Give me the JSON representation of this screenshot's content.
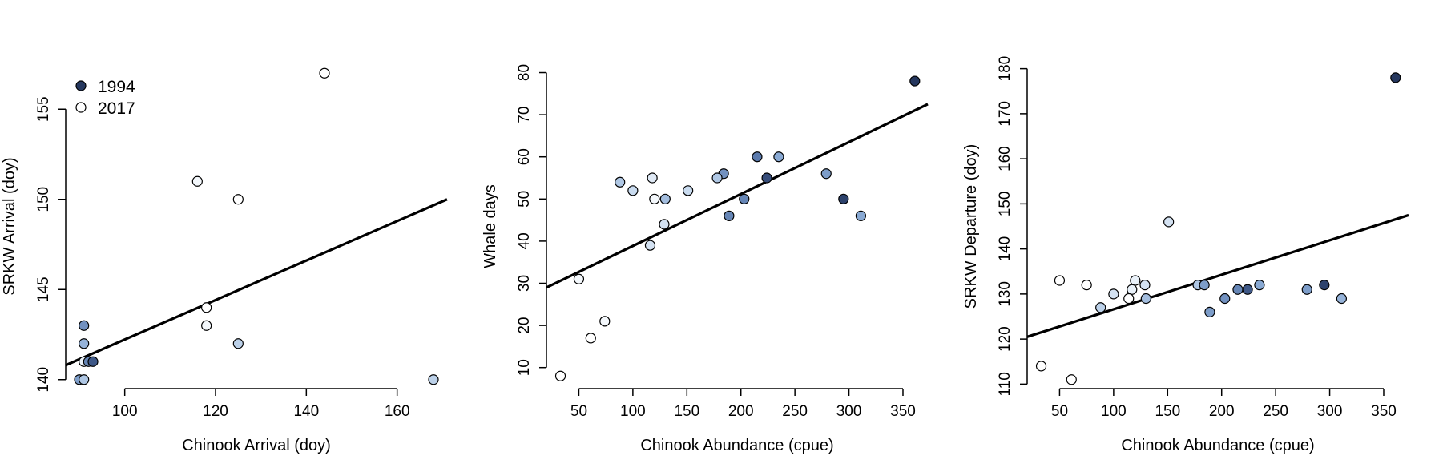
{
  "colors": {
    "year_1994": "#25375e",
    "year_2017": "#ffffff",
    "gradient_stops": [
      "#25375e",
      "#4f6ea3",
      "#89a9d3",
      "#c9dbef",
      "#ffffff"
    ]
  },
  "legend": {
    "position": "top-left",
    "entries": [
      "1994",
      "2017"
    ]
  },
  "chart_data": [
    {
      "type": "scatter",
      "xlabel": "Chinook Arrival (doy)",
      "ylabel": "SRKW Arrival (doy)",
      "xlim": [
        87,
        171
      ],
      "ylim": [
        139.5,
        157.5
      ],
      "xticks": [
        "100",
        "120",
        "140",
        "160"
      ],
      "yticks": [
        "140",
        "145",
        "150",
        "155"
      ],
      "xtick_values": [
        100,
        120,
        140,
        160
      ],
      "ytick_values": [
        140,
        145,
        150,
        155
      ],
      "points": [
        {
          "x": 144,
          "y": 157,
          "t": 1.0
        },
        {
          "x": 116,
          "y": 151,
          "t": 0.95
        },
        {
          "x": 125,
          "y": 150,
          "t": 1.0
        },
        {
          "x": 118,
          "y": 144,
          "t": 1.0
        },
        {
          "x": 118,
          "y": 143,
          "t": 0.95
        },
        {
          "x": 125,
          "y": 142,
          "t": 0.7
        },
        {
          "x": 168,
          "y": 140,
          "t": 0.7
        },
        {
          "x": 91,
          "y": 143,
          "t": 0.4
        },
        {
          "x": 91,
          "y": 142,
          "t": 0.55
        },
        {
          "x": 91,
          "y": 141,
          "t": 0.9
        },
        {
          "x": 92,
          "y": 141,
          "t": 0.35
        },
        {
          "x": 93,
          "y": 141,
          "t": 0.15
        },
        {
          "x": 90,
          "y": 140,
          "t": 0.45
        },
        {
          "x": 91,
          "y": 140,
          "t": 0.65
        }
      ],
      "fit_line": {
        "x": [
          87,
          171
        ],
        "y": [
          140.8,
          150.0
        ]
      },
      "legend": true
    },
    {
      "type": "scatter",
      "xlabel": "Chinook Abundance (cpue)",
      "ylabel": "Whale days",
      "xlim": [
        20,
        373
      ],
      "ylim": [
        5,
        82
      ],
      "xticks": [
        "50",
        "100",
        "150",
        "200",
        "250",
        "300",
        "350"
      ],
      "yticks": [
        "10",
        "20",
        "30",
        "40",
        "50",
        "60",
        "70",
        "80"
      ],
      "xtick_values": [
        50,
        100,
        150,
        200,
        250,
        300,
        350
      ],
      "ytick_values": [
        10,
        20,
        30,
        40,
        50,
        60,
        70,
        80
      ],
      "points": [
        {
          "x": 361,
          "y": 78,
          "t": 0.0
        },
        {
          "x": 215,
          "y": 60,
          "t": 0.3
        },
        {
          "x": 235,
          "y": 60,
          "t": 0.5
        },
        {
          "x": 184,
          "y": 56,
          "t": 0.4
        },
        {
          "x": 279,
          "y": 56,
          "t": 0.45
        },
        {
          "x": 178,
          "y": 55,
          "t": 0.65
        },
        {
          "x": 224,
          "y": 55,
          "t": 0.1
        },
        {
          "x": 118,
          "y": 55,
          "t": 0.85
        },
        {
          "x": 88,
          "y": 54,
          "t": 0.65
        },
        {
          "x": 100,
          "y": 52,
          "t": 0.75
        },
        {
          "x": 151,
          "y": 52,
          "t": 0.75
        },
        {
          "x": 203,
          "y": 50,
          "t": 0.35
        },
        {
          "x": 295,
          "y": 50,
          "t": 0.05
        },
        {
          "x": 120,
          "y": 50,
          "t": 0.95
        },
        {
          "x": 130,
          "y": 50,
          "t": 0.6
        },
        {
          "x": 189,
          "y": 46,
          "t": 0.35
        },
        {
          "x": 311,
          "y": 46,
          "t": 0.5
        },
        {
          "x": 129,
          "y": 44,
          "t": 0.8
        },
        {
          "x": 116,
          "y": 39,
          "t": 0.8
        },
        {
          "x": 50,
          "y": 31,
          "t": 0.95
        },
        {
          "x": 74,
          "y": 21,
          "t": 0.95
        },
        {
          "x": 61,
          "y": 17,
          "t": 1.0
        },
        {
          "x": 33,
          "y": 8,
          "t": 1.0
        }
      ],
      "fit_line": {
        "x": [
          20,
          373
        ],
        "y": [
          29,
          72.5
        ]
      },
      "legend": false
    },
    {
      "type": "scatter",
      "xlabel": "Chinook Abundance (cpue)",
      "ylabel": "SRKW Departure (doy)",
      "xlim": [
        20,
        373
      ],
      "ylim": [
        109,
        181
      ],
      "xticks": [
        "50",
        "100",
        "150",
        "200",
        "250",
        "300",
        "350"
      ],
      "yticks": [
        "110",
        "120",
        "130",
        "140",
        "150",
        "160",
        "170",
        "180"
      ],
      "xtick_values": [
        50,
        100,
        150,
        200,
        250,
        300,
        350
      ],
      "ytick_values": [
        110,
        120,
        130,
        140,
        150,
        160,
        170,
        180
      ],
      "points": [
        {
          "x": 361,
          "y": 178,
          "t": 0.0
        },
        {
          "x": 151,
          "y": 146,
          "t": 0.8
        },
        {
          "x": 50,
          "y": 133,
          "t": 1.0
        },
        {
          "x": 120,
          "y": 133,
          "t": 0.9
        },
        {
          "x": 75,
          "y": 132,
          "t": 1.0
        },
        {
          "x": 129,
          "y": 132,
          "t": 0.8
        },
        {
          "x": 178,
          "y": 132,
          "t": 0.65
        },
        {
          "x": 184,
          "y": 132,
          "t": 0.45
        },
        {
          "x": 235,
          "y": 132,
          "t": 0.5
        },
        {
          "x": 295,
          "y": 132,
          "t": 0.05
        },
        {
          "x": 117,
          "y": 131,
          "t": 0.9
        },
        {
          "x": 215,
          "y": 131,
          "t": 0.35
        },
        {
          "x": 224,
          "y": 131,
          "t": 0.15
        },
        {
          "x": 279,
          "y": 131,
          "t": 0.45
        },
        {
          "x": 100,
          "y": 130,
          "t": 0.8
        },
        {
          "x": 114,
          "y": 129,
          "t": 1.0
        },
        {
          "x": 130,
          "y": 129,
          "t": 0.6
        },
        {
          "x": 203,
          "y": 129,
          "t": 0.4
        },
        {
          "x": 311,
          "y": 129,
          "t": 0.55
        },
        {
          "x": 88,
          "y": 127,
          "t": 0.7
        },
        {
          "x": 189,
          "y": 126,
          "t": 0.45
        },
        {
          "x": 33,
          "y": 114,
          "t": 1.0
        },
        {
          "x": 61,
          "y": 111,
          "t": 1.0
        }
      ],
      "fit_line": {
        "x": [
          20,
          373
        ],
        "y": [
          120.5,
          147.5
        ]
      },
      "legend": false
    }
  ]
}
